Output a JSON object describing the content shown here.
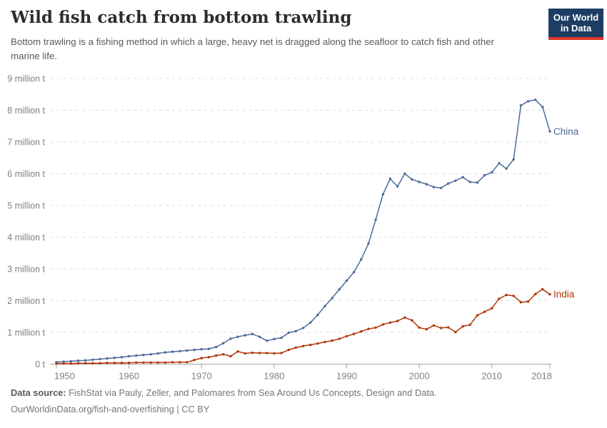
{
  "header": {
    "title": "Wild fish catch from bottom trawling",
    "subtitle": "Bottom trawling is a fishing method in which a large, heavy net is dragged along the seafloor to catch fish and other marine life.",
    "logo": {
      "line1": "Our World",
      "line2": "in Data",
      "bg_color": "#1d3d63",
      "accent_color": "#e0362b"
    }
  },
  "chart_data": {
    "type": "line",
    "title": "Wild fish catch from bottom trawling",
    "xlabel": "",
    "ylabel": "",
    "unit": "million t",
    "ylim": [
      0,
      9
    ],
    "grid": "horizontal-dashed",
    "legend_position": "line-end-labels",
    "yticks": [
      "0 t",
      "1 million t",
      "2 million t",
      "3 million t",
      "4 million t",
      "5 million t",
      "6 million t",
      "7 million t",
      "8 million t",
      "9 million t"
    ],
    "xticks": [
      1950,
      1960,
      1970,
      1980,
      1990,
      2000,
      2010,
      2018
    ],
    "x": [
      1950,
      1951,
      1952,
      1953,
      1954,
      1955,
      1956,
      1957,
      1958,
      1959,
      1960,
      1961,
      1962,
      1963,
      1964,
      1965,
      1966,
      1967,
      1968,
      1969,
      1970,
      1971,
      1972,
      1973,
      1974,
      1975,
      1976,
      1977,
      1978,
      1979,
      1980,
      1981,
      1982,
      1983,
      1984,
      1985,
      1986,
      1987,
      1988,
      1989,
      1990,
      1991,
      1992,
      1993,
      1994,
      1995,
      1996,
      1997,
      1998,
      1999,
      2000,
      2001,
      2002,
      2003,
      2004,
      2005,
      2006,
      2007,
      2008,
      2009,
      2010,
      2011,
      2012,
      2013,
      2014,
      2015,
      2016,
      2017,
      2018
    ],
    "series": [
      {
        "name": "China",
        "color": "#4C6A9C",
        "values": [
          0.06,
          0.08,
          0.09,
          0.11,
          0.12,
          0.14,
          0.16,
          0.18,
          0.2,
          0.22,
          0.25,
          0.27,
          0.29,
          0.31,
          0.34,
          0.37,
          0.39,
          0.41,
          0.43,
          0.45,
          0.47,
          0.48,
          0.54,
          0.66,
          0.8,
          0.86,
          0.91,
          0.95,
          0.86,
          0.74,
          0.79,
          0.83,
          0.99,
          1.04,
          1.14,
          1.31,
          1.55,
          1.83,
          2.08,
          2.36,
          2.63,
          2.9,
          3.3,
          3.8,
          4.55,
          5.35,
          5.84,
          5.6,
          6.0,
          5.82,
          5.74,
          5.67,
          5.58,
          5.55,
          5.69,
          5.78,
          5.89,
          5.74,
          5.72,
          5.95,
          6.04,
          6.33,
          6.16,
          6.45,
          8.15,
          8.28,
          8.33,
          8.1,
          7.33
        ]
      },
      {
        "name": "India",
        "color": "#B13507",
        "values": [
          0.02,
          0.02,
          0.02,
          0.03,
          0.03,
          0.03,
          0.03,
          0.04,
          0.04,
          0.04,
          0.04,
          0.05,
          0.05,
          0.05,
          0.05,
          0.05,
          0.06,
          0.06,
          0.06,
          0.13,
          0.19,
          0.22,
          0.27,
          0.31,
          0.25,
          0.4,
          0.34,
          0.36,
          0.35,
          0.35,
          0.34,
          0.35,
          0.45,
          0.52,
          0.57,
          0.61,
          0.65,
          0.7,
          0.74,
          0.8,
          0.88,
          0.95,
          1.03,
          1.11,
          1.15,
          1.25,
          1.31,
          1.36,
          1.47,
          1.38,
          1.15,
          1.1,
          1.22,
          1.14,
          1.16,
          1.01,
          1.19,
          1.24,
          1.54,
          1.65,
          1.76,
          2.06,
          2.18,
          2.15,
          1.95,
          1.97,
          2.21,
          2.36,
          2.2
        ]
      }
    ],
    "colors": {
      "grid": "#dcdcdc",
      "axis": "#a5a5a5",
      "tick_label": "#818181"
    }
  },
  "footer": {
    "datasource_label": "Data source:",
    "datasource_text": "FishStat via Pauly, Zeller, and Palomares from Sea Around Us Concepts, Design and Data.",
    "url": "OurWorldinData.org/fish-and-overfishing",
    "separator": "|",
    "license": "CC BY"
  }
}
